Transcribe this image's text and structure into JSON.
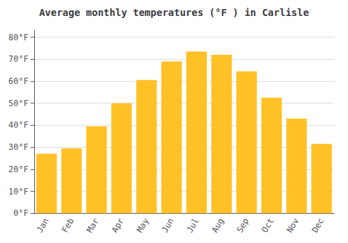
{
  "chart_data": {
    "type": "bar",
    "title": "Average monthly temperatures (°F ) in Carlisle",
    "categories": [
      "Jan",
      "Feb",
      "Mar",
      "Apr",
      "May",
      "Jun",
      "Jul",
      "Aug",
      "Sep",
      "Oct",
      "Nov",
      "Dec"
    ],
    "values": [
      27,
      29.5,
      39.5,
      50,
      60.5,
      69,
      73.5,
      72,
      64.5,
      52.5,
      43,
      31.5
    ],
    "color": "#FFC125",
    "ylim": [
      0,
      83
    ],
    "yticks": [
      {
        "value": 0,
        "label": "0°F"
      },
      {
        "value": 10,
        "label": "10°F"
      },
      {
        "value": 20,
        "label": "20°F"
      },
      {
        "value": 30,
        "label": "30°F"
      },
      {
        "value": 40,
        "label": "40°F"
      },
      {
        "value": 50,
        "label": "50°F"
      },
      {
        "value": 60,
        "label": "60°F"
      },
      {
        "value": 70,
        "label": "70°F"
      },
      {
        "value": 80,
        "label": "80°F"
      }
    ],
    "grid": true
  }
}
